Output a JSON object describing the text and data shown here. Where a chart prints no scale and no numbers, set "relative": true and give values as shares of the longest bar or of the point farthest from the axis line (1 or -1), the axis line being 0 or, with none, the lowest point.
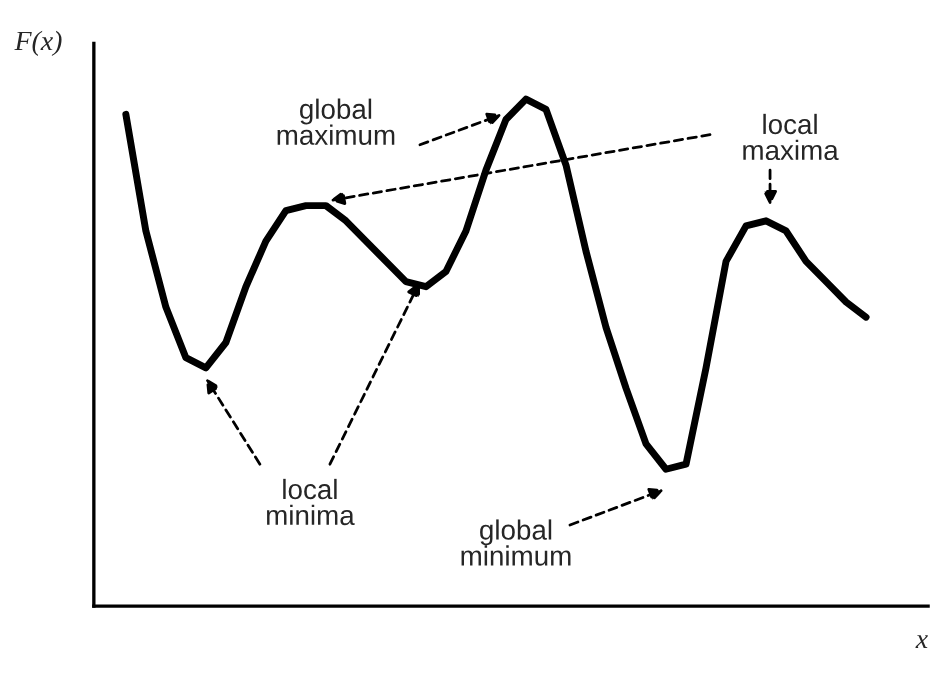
{
  "chart_data": {
    "type": "line",
    "relative": true,
    "xlabel": "x",
    "ylabel": "F(x)",
    "categories": [
      null,
      null,
      null,
      null,
      null,
      null,
      null,
      null,
      null,
      null,
      null,
      null,
      null,
      null,
      null,
      null,
      null,
      null,
      null,
      null,
      null,
      null,
      null,
      null,
      null,
      null,
      null,
      null,
      null,
      null,
      null,
      null,
      null,
      null,
      null,
      null,
      null,
      null
    ],
    "series": [
      {
        "color": "#000000",
        "values": [
          0.97,
          0.74,
          0.59,
          0.49,
          0.47,
          0.52,
          0.63,
          0.72,
          0.78,
          0.79,
          0.79,
          0.76,
          0.72,
          0.68,
          0.64,
          0.63,
          0.66,
          0.74,
          0.86,
          0.96,
          1.0,
          0.98,
          0.87,
          0.7,
          0.55,
          0.43,
          0.32,
          0.27,
          0.28,
          0.47,
          0.68,
          0.75,
          0.76,
          0.74,
          0.68,
          0.64,
          0.6,
          0.57
        ]
      }
    ],
    "annotations": [
      "global\nmaximum",
      "local\nmaxima",
      "local\nminima",
      "global\nminimum"
    ],
    "marker": "none",
    "line_style": "solid"
  }
}
